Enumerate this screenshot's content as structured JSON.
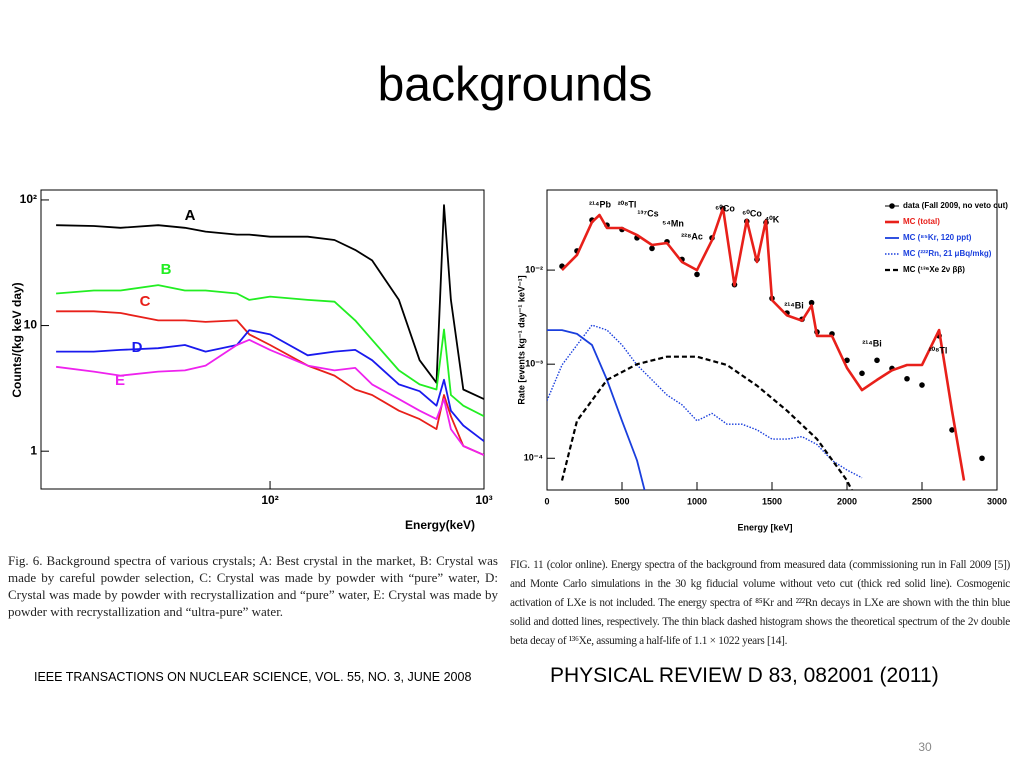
{
  "slide": {
    "title": "backgrounds",
    "page_number": "30",
    "captions": [
      "Fig. 6.   Background spectra of various crystals; A: Best crystal in the market, B: Crystal was made by careful powder selection, C: Crystal was made by powder with “pure” water, D: Crystal was made by powder with recrystallization and “pure” water, E: Crystal was made by powder with recrystallization and “ultra-pure” water.",
      "FIG. 11 (color online).   Energy spectra of the background from measured data (commissioning run in Fall 2009 [5]) and Monte Carlo simulations in the 30 kg fiducial volume without veto cut (thick red solid line). Cosmogenic activation of LXe is not included. The energy spectra of ⁸⁵Kr and ²²²Rn decays in LXe are shown with the thin blue solid and dotted lines, respectively. The thin black dashed histogram shows the theoretical spectrum of the 2ν double beta decay of ¹³⁶Xe, assuming a half-life of 1.1 × 1022 years [14]."
    ],
    "sources": [
      "IEEE TRANSACTIONS ON NUCLEAR SCIENCE, VOL. 55, NO. 3, JUNE 2008",
      "PHYSICAL REVIEW D 83, 082001 (2011)"
    ]
  },
  "chart_data": [
    {
      "type": "line",
      "x_label": "Energy(keV)",
      "y_label": "Counts/(kg keV day)",
      "xlog": true,
      "ylog": true,
      "xlim": [
        8.5,
        1000
      ],
      "ylim": [
        0.5,
        120
      ],
      "xticks": [
        {
          "value": 100,
          "label": "10²"
        },
        {
          "value": 1000,
          "label": "10³"
        }
      ],
      "yticks": [
        1,
        10,
        {
          "value": 100,
          "label": "10²"
        }
      ],
      "legend": "inline",
      "x": [
        10,
        15,
        20,
        30,
        40,
        50,
        70,
        80,
        100,
        150,
        200,
        250,
        300,
        400,
        500,
        600,
        650,
        700,
        800,
        1000
      ],
      "series": [
        {
          "name": "A",
          "color": "#000000",
          "linestyle": "solid",
          "values": [
            63,
            62,
            60,
            63,
            60,
            56,
            53,
            53,
            51,
            51,
            48,
            40,
            33,
            16,
            5.3,
            3.5,
            91,
            16,
            3.1,
            2.6
          ]
        },
        {
          "name": "B",
          "color": "#22ee22",
          "linestyle": "solid",
          "values": [
            18,
            19,
            19,
            21,
            19,
            19,
            18,
            16,
            17,
            16,
            15.5,
            11,
            7.7,
            4.4,
            3.4,
            3.1,
            9.3,
            2.8,
            2.3,
            1.9
          ]
        },
        {
          "name": "C",
          "color": "#e8201a",
          "linestyle": "solid",
          "values": [
            13,
            13,
            12.6,
            11,
            11,
            10.7,
            11,
            8.5,
            7,
            4.8,
            4,
            3.1,
            2.8,
            2.1,
            1.8,
            1.5,
            2.8,
            1.9,
            1.1,
            0.93
          ]
        },
        {
          "name": "D",
          "color": "#1a1aee",
          "linestyle": "solid",
          "values": [
            6.2,
            6.2,
            6.4,
            6.6,
            7,
            6.2,
            7,
            9.2,
            8.5,
            5.8,
            6.2,
            6.4,
            5.3,
            3.4,
            3,
            2.3,
            3.7,
            2.1,
            1.6,
            1.2
          ]
        },
        {
          "name": "E",
          "color": "#ee22ee",
          "linestyle": "solid",
          "values": [
            4.7,
            4.3,
            4,
            4.3,
            4.4,
            4.8,
            7,
            7.7,
            6.4,
            4.8,
            4.4,
            4.6,
            3.4,
            2.6,
            2.1,
            1.8,
            2.6,
            1.5,
            1.1,
            0.93
          ]
        }
      ]
    },
    {
      "type": "line",
      "x_label": "Energy [keV]",
      "y_label": "Rate [events kg⁻¹ day⁻¹ keV⁻¹]",
      "xlog": false,
      "ylog": true,
      "xlim": [
        0,
        3000
      ],
      "ylim": [
        4.6e-05,
        0.071
      ],
      "xticks": [
        0,
        500,
        1000,
        1500,
        2000,
        2500,
        3000
      ],
      "yticks": [
        {
          "value": 0.0001,
          "label": "10⁻⁴"
        },
        {
          "value": 0.001,
          "label": "10⁻³"
        },
        {
          "value": 0.01,
          "label": "10⁻²"
        }
      ],
      "legend": "upper right",
      "annotations": [
        "²¹⁴Pb",
        "²⁰⁸Tl",
        "¹³⁷Cs",
        "⁵⁴Mn",
        "²²⁸Ac",
        "⁶⁰Co",
        "⁶⁰Co",
        "⁴⁰K",
        "²¹⁴Bi",
        "²¹⁴Bi",
        "²⁰⁸Tl"
      ],
      "series": [
        {
          "name": "data (Fall 2009, no veto cut)",
          "color": "#000000",
          "linestyle": "markers",
          "x": [
            100,
            200,
            300,
            400,
            500,
            600,
            700,
            800,
            900,
            1000,
            1100,
            1173,
            1250,
            1332,
            1400,
            1460,
            1500,
            1600,
            1700,
            1764,
            1800,
            1900,
            2000,
            2100,
            2200,
            2300,
            2400,
            2500,
            2614,
            2700,
            2900
          ],
          "values": [
            0.011,
            0.016,
            0.034,
            0.03,
            0.027,
            0.022,
            0.017,
            0.02,
            0.013,
            0.009,
            0.022,
            0.045,
            0.007,
            0.033,
            0.013,
            0.032,
            0.005,
            0.0035,
            0.003,
            0.0045,
            0.0022,
            0.0021,
            0.0011,
            0.0008,
            0.0011,
            0.0009,
            0.0007,
            0.0006,
            0.002,
            0.0002,
            0.0001
          ]
        },
        {
          "name": "MC (total)",
          "color": "#e8201a",
          "linestyle": "thick",
          "x": [
            100,
            200,
            300,
            350,
            400,
            500,
            600,
            700,
            800,
            900,
            1000,
            1100,
            1173,
            1250,
            1332,
            1400,
            1460,
            1500,
            1600,
            1700,
            1764,
            1800,
            1900,
            2000,
            2100,
            2200,
            2300,
            2400,
            2500,
            2614,
            2700,
            2780
          ],
          "values": [
            0.01,
            0.0145,
            0.0324,
            0.0385,
            0.028,
            0.028,
            0.0236,
            0.0185,
            0.0194,
            0.0122,
            0.01,
            0.0208,
            0.0457,
            0.0069,
            0.034,
            0.0122,
            0.034,
            0.0048,
            0.0033,
            0.0029,
            0.0042,
            0.002,
            0.002,
            0.00091,
            0.00053,
            0.00068,
            0.00086,
            0.00098,
            0.00098,
            0.0023,
            0.00032,
            5.8e-05
          ]
        },
        {
          "name": "MC (⁸⁵Kr, 120 ppt)",
          "color": "#1a3fdd",
          "linestyle": "solid",
          "x": [
            0,
            100,
            200,
            300,
            400,
            500,
            600,
            660
          ],
          "values": [
            0.0023,
            0.0023,
            0.0021,
            0.0016,
            0.00068,
            0.00025,
            9.5e-05,
            4e-05
          ]
        },
        {
          "name": "MC (²²²Rn, 21 μBq/mkg)",
          "color": "#1a3fdd",
          "linestyle": "dotted",
          "x": [
            0,
            100,
            200,
            300,
            400,
            500,
            600,
            700,
            800,
            900,
            1000,
            1100,
            1200,
            1300,
            1400,
            1500,
            1600,
            1700,
            1800,
            1900,
            2000,
            2100
          ],
          "values": [
            0.00041,
            0.00098,
            0.0016,
            0.0026,
            0.0023,
            0.0016,
            0.00098,
            0.00068,
            0.00047,
            0.00037,
            0.00025,
            0.0003,
            0.00023,
            0.00023,
            0.0002,
            0.00016,
            0.00016,
            0.00017,
            0.00014,
            9.5e-05,
            7.5e-05,
            6.2e-05
          ]
        },
        {
          "name": "MC (¹³⁶Xe 2ν ββ)",
          "color": "#000000",
          "linestyle": "dashed",
          "x": [
            100,
            200,
            400,
            600,
            800,
            1000,
            1200,
            1400,
            1600,
            1800,
            2000,
            2050
          ],
          "values": [
            5.8e-05,
            0.00025,
            0.00068,
            0.001,
            0.0012,
            0.0012,
            0.00098,
            0.00059,
            0.00032,
            0.00016,
            5.8e-05,
            4e-05
          ]
        }
      ]
    }
  ]
}
